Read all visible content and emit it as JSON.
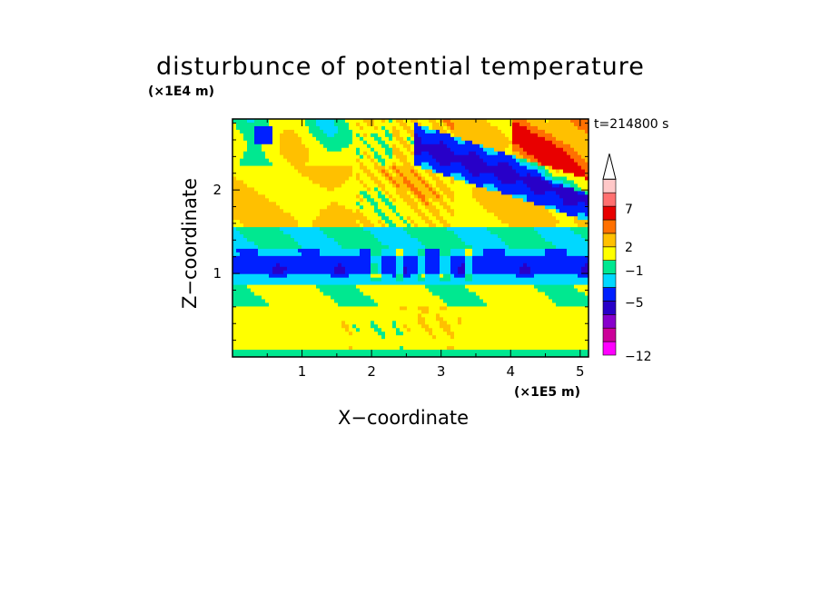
{
  "chart_data": {
    "type": "heatmap",
    "title": "disturbunce of potential temperature",
    "xlabel": "X−coordinate",
    "ylabel": "Z−coordinate",
    "x_unit": "(×1E5 m)",
    "y_unit": "(×1E4 m)",
    "time_label": "t=214800 s",
    "xlim": [
      0,
      5.12
    ],
    "ylim": [
      0,
      2.85
    ],
    "x_ticks": [
      "1",
      "2",
      "3",
      "4",
      "5"
    ],
    "y_ticks": [
      "1",
      "2"
    ],
    "colorbar": {
      "extend_max": true,
      "tick_labels": [
        "7",
        "2",
        "−1",
        "−5",
        "−12"
      ],
      "colors": [
        "#ff00ff",
        "#cc0099",
        "#8800cc",
        "#2800c8",
        "#0020ff",
        "#00d8ff",
        "#00e890",
        "#ffff00",
        "#ffc000",
        "#ff7000",
        "#e80000",
        "#ff7070",
        "#ffc8c8",
        "#ffffff"
      ]
    },
    "layers": [
      {
        "name": "surface_warm_layer",
        "z_range": [
          0,
          0.6
        ],
        "level": "yellow"
      },
      {
        "name": "lower_transition",
        "z_range": [
          0.6,
          0.85
        ],
        "level": "green"
      },
      {
        "name": "cold_band",
        "z_range": [
          0.9,
          1.3
        ],
        "level": "blue"
      },
      {
        "name": "upper_transition",
        "z_range": [
          1.3,
          1.6
        ],
        "level": "cyan/green"
      },
      {
        "name": "upper_warm_layer",
        "z_range": [
          1.6,
          2.85
        ],
        "level": "yellow/orange"
      },
      {
        "name": "tilted_cold_wave",
        "x_range": [
          2.6,
          5.1
        ],
        "z_range": [
          1.8,
          2.6
        ],
        "level": "blue"
      }
    ]
  }
}
